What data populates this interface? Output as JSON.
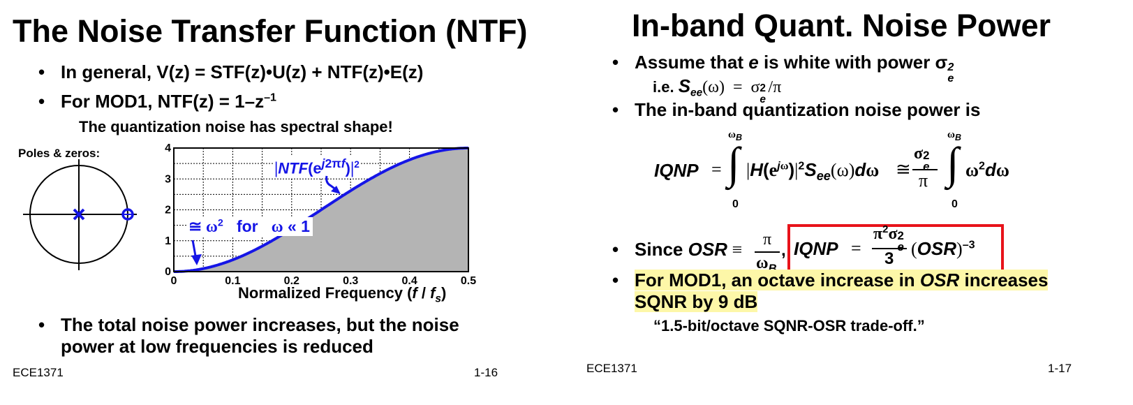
{
  "left": {
    "title": "The Noise Transfer Function (NTF)",
    "bullet1": "In general, V(z) = STF(z)•U(z) + NTF(z)•E(z)",
    "bullet2_prefix": "For MOD1, NTF(z) = 1–z",
    "bullet2_exp": "–1",
    "subline": "The quantization noise has spectral shape!",
    "poles_label": "Poles & zeros:",
    "bottom_bullet_line1": "The total noise power increases, but the noise",
    "bottom_bullet_line2": "power at low frequencies is reduced",
    "footer_left": "ECE1371",
    "footer_right": "1-16"
  },
  "right": {
    "title": "In-band Quant. Noise Power",
    "bullet1_prefix": "Assume that ",
    "bullet1_e": "e",
    "bullet1_suffix": " is white with power σ",
    "ie_prefix": "i.e. ",
    "bullet2": "The in-band quantization noise power is",
    "since": "Since ",
    "osr": "OSR",
    "bullet4_part1": "For MOD1, an octave increase in ",
    "bullet4_osr": "OSR",
    "bullet4_part2": " increases",
    "bullet4_line2": "SQNR by 9 dB",
    "quote": "“1.5-bit/octave SQNR-OSR trade-off.”",
    "footer_left": "ECE1371",
    "footer_right": "1-17",
    "highlight_color": "#fdf7a8",
    "box_color": "#e8131a"
  },
  "chart_data": {
    "type": "area",
    "xlabel": "Normalized Frequency (f / fs)",
    "ylabel": "",
    "xlim": [
      0,
      0.5
    ],
    "ylim": [
      0,
      4
    ],
    "x_ticks": [
      "0",
      "0.1",
      "0.2",
      "0.3",
      "0.4",
      "0.5"
    ],
    "y_ticks": [
      "0",
      "1",
      "2",
      "3",
      "4"
    ],
    "series": [
      {
        "name": "|NTF(e^{j2πf})|^2",
        "function": "4*sin(pi*f)^2",
        "x": [
          0,
          0.05,
          0.1,
          0.15,
          0.2,
          0.25,
          0.3,
          0.35,
          0.4,
          0.45,
          0.5
        ],
        "y": [
          0,
          0.098,
          0.382,
          0.824,
          1.382,
          2.0,
          2.618,
          3.176,
          3.618,
          3.902,
          4.0
        ]
      }
    ],
    "annotations": [
      "|NTF(e^{j2πf})|^2",
      "≅ ω² for ω « 1"
    ],
    "grid": true,
    "fill_color": "#b4b4b4",
    "line_color": "#1515e6"
  }
}
